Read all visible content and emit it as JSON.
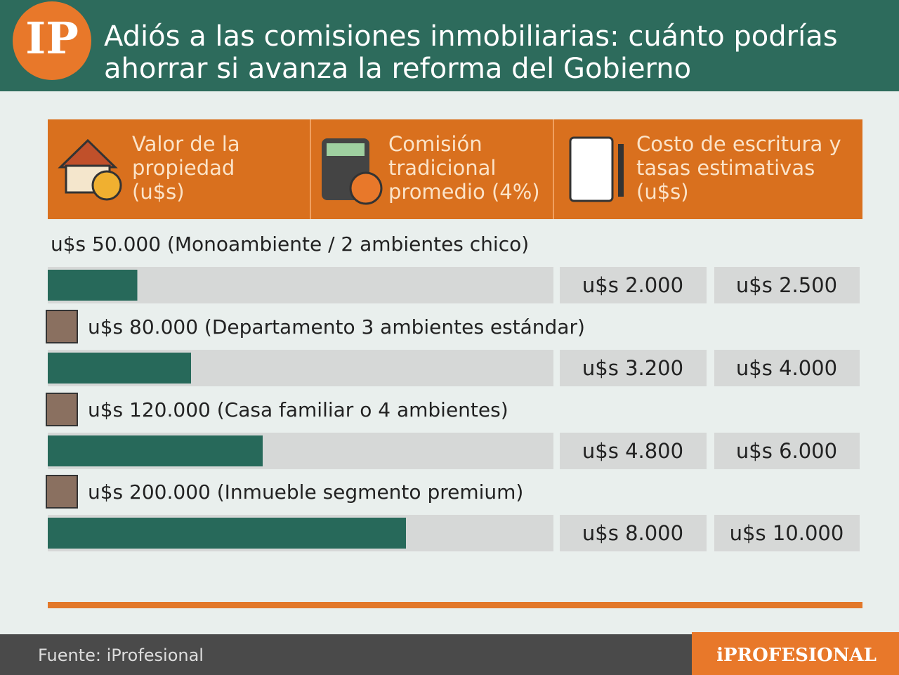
{
  "header": {
    "logo": "IP",
    "title_lines": [
      "Adiós a las comisiones inmobiliarias: cuánto podrías",
      "ahorrar si avanza la reforma del Gobierno"
    ]
  },
  "chart_data": {
    "type": "bar",
    "color": "#27695a",
    "columns": [
      [
        "Valor de la",
        "propiedad",
        "(u$s)"
      ],
      [
        "Comisión",
        "tradicional",
        "promedio (4%)"
      ],
      [
        "Costo de escritura y",
        "tasas estimativas",
        "(u$s)"
      ]
    ],
    "rows": [
      {
        "label": "u$s 50.000 (Monoambiente / 2 ambientes chico)",
        "value": 50000,
        "commission": "u$s 2.000",
        "costs": "u$s 2.500"
      },
      {
        "label": "u$s 80.000 (Departamento 3 ambientes estándar)",
        "value": 80000,
        "commission": "u$s 3.200",
        "costs": "u$s 4.000"
      },
      {
        "label": "u$s 120.000 (Casa familiar o 4 ambientes)",
        "value": 120000,
        "commission": "u$s 4.800",
        "costs": "u$s 6.000"
      },
      {
        "label": "u$s 200.000 (Inmueble segmento premium)",
        "value": 200000,
        "commission": "u$s 8.000",
        "costs": "u$s 10.000"
      }
    ]
  },
  "footer": {
    "source": "Fuente: iProfesional",
    "brand": "iPROFESIONAL"
  }
}
